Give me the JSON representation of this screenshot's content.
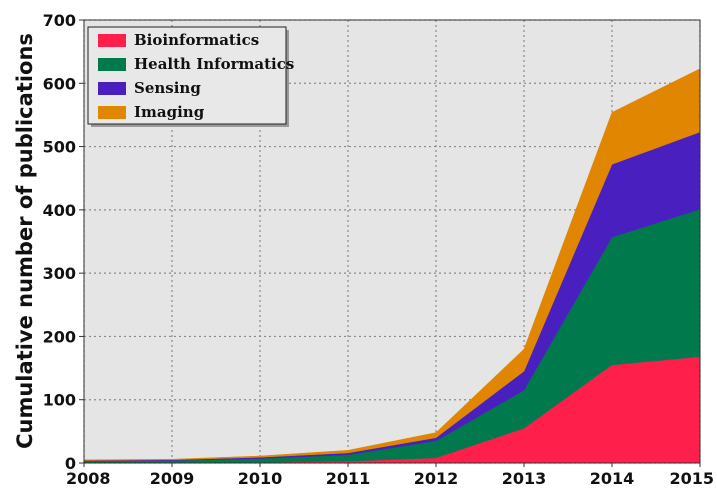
{
  "chart_data": {
    "type": "area",
    "stacked": true,
    "title": "",
    "xlabel": "",
    "ylabel": "Cumulative number of publications",
    "x": [
      2008,
      2009,
      2010,
      2011,
      2012,
      2013,
      2014,
      2015
    ],
    "xticks": [
      "2008",
      "2009",
      "2010",
      "2011",
      "2012",
      "2013",
      "2014",
      "2015"
    ],
    "yticks": [
      "0",
      "100",
      "200",
      "300",
      "400",
      "500",
      "600",
      "700"
    ],
    "xlim": [
      2008,
      2015
    ],
    "ylim": [
      0,
      700
    ],
    "grid": true,
    "legend_position": "top-left",
    "series": [
      {
        "name": "Bioinformatics",
        "color": "#ff1f4b",
        "values": [
          0,
          0,
          1,
          3,
          8,
          55,
          155,
          168
        ]
      },
      {
        "name": "Health Informatics",
        "color": "#007a4d",
        "values": [
          3,
          4,
          6,
          10,
          27,
          60,
          202,
          233
        ]
      },
      {
        "name": "Sensing",
        "color": "#4a1fbf",
        "values": [
          1,
          1,
          2,
          3,
          5,
          30,
          115,
          122
        ]
      },
      {
        "name": "Imaging",
        "color": "#e08600",
        "values": [
          1,
          1,
          2,
          4,
          8,
          35,
          82,
          100
        ]
      }
    ]
  }
}
